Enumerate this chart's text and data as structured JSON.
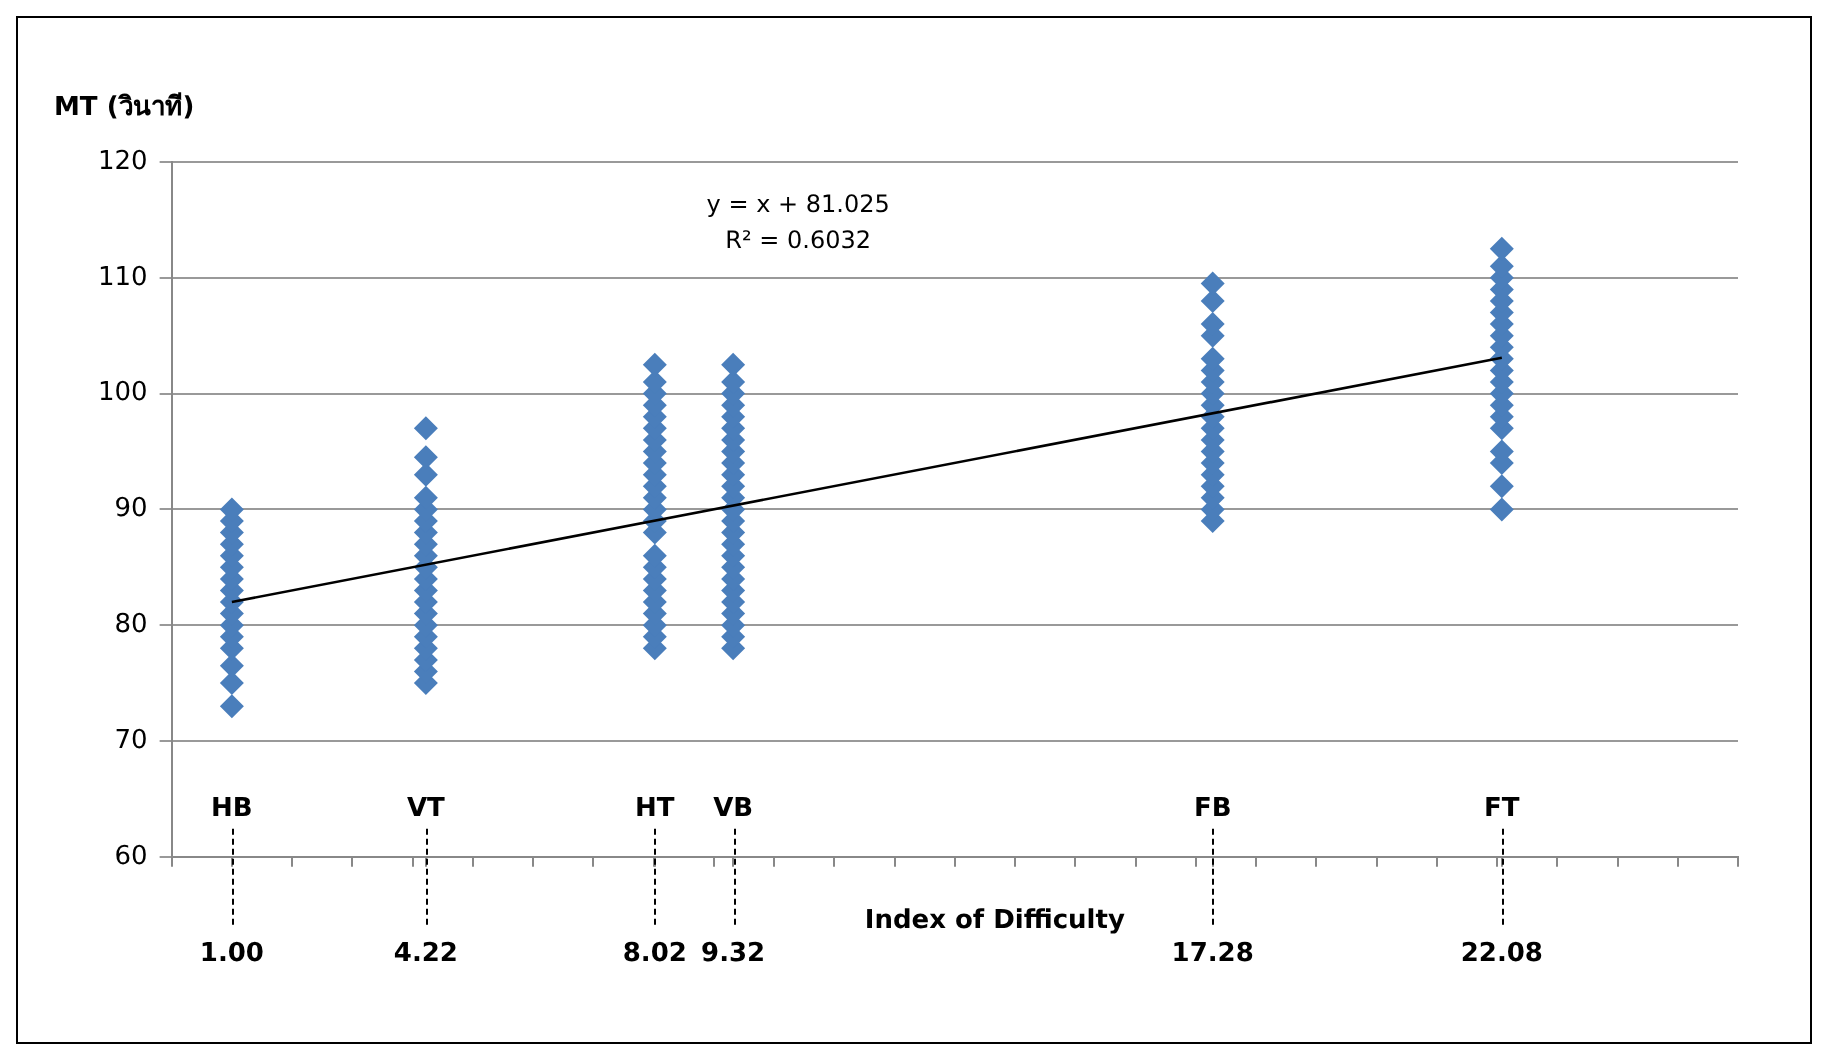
{
  "chart_data": {
    "type": "scatter",
    "ylabel": "MT (วินาที)",
    "xlabel": "Index of Difficulty",
    "xlim": [
      0,
      26
    ],
    "xticks": [
      {
        "value": 0,
        "label": null
      },
      {
        "value": 1,
        "label": "1.00"
      },
      {
        "value": 2,
        "label": null
      },
      {
        "value": 3,
        "label": null
      },
      {
        "value": 4,
        "label": null
      },
      {
        "value": 4.22,
        "label": "4.22"
      },
      {
        "value": 5,
        "label": null
      },
      {
        "value": 6,
        "label": null
      },
      {
        "value": 7,
        "label": null
      },
      {
        "value": 8,
        "label": null
      },
      {
        "value": 8.02,
        "label": "8.02"
      },
      {
        "value": 9,
        "label": null
      },
      {
        "value": 9.32,
        "label": "9.32"
      },
      {
        "value": 10,
        "label": null
      },
      {
        "value": 11,
        "label": null
      },
      {
        "value": 12,
        "label": null
      },
      {
        "value": 13,
        "label": null
      },
      {
        "value": 14,
        "label": null
      },
      {
        "value": 15,
        "label": null
      },
      {
        "value": 16,
        "label": null
      },
      {
        "value": 17,
        "label": null
      },
      {
        "value": 17.28,
        "label": "17.28"
      },
      {
        "value": 18,
        "label": null
      },
      {
        "value": 19,
        "label": null
      },
      {
        "value": 20,
        "label": null
      },
      {
        "value": 21,
        "label": null
      },
      {
        "value": 22,
        "label": null
      },
      {
        "value": 22.08,
        "label": "22.08"
      },
      {
        "value": 23,
        "label": null
      },
      {
        "value": 24,
        "label": null
      },
      {
        "value": 25,
        "label": null
      },
      {
        "value": 26,
        "label": null
      }
    ],
    "ylim": [
      60,
      120
    ],
    "yticks": [
      60,
      70,
      80,
      90,
      100,
      110,
      120
    ],
    "grid": "y",
    "legend": false,
    "marker": "diamond",
    "series": [
      {
        "type": "scatter",
        "color": "#4a7ebb",
        "x": [
          1,
          1,
          1,
          1,
          1,
          1,
          1,
          1,
          1,
          1,
          1,
          1,
          1,
          1,
          1,
          1
        ],
        "values": [
          73,
          75,
          76.5,
          78,
          79,
          80,
          81,
          82,
          83,
          84,
          85,
          86,
          87,
          88,
          89,
          90
        ]
      },
      {
        "type": "scatter",
        "color": "#4a7ebb",
        "x": [
          4.22,
          4.22,
          4.22,
          4.22,
          4.22,
          4.22,
          4.22,
          4.22,
          4.22,
          4.22,
          4.22,
          4.22,
          4.22,
          4.22,
          4.22,
          4.22,
          4.22,
          4.22,
          4.22,
          4.22
        ],
        "values": [
          75,
          76,
          77,
          78,
          79,
          80,
          81,
          82,
          83,
          84,
          85,
          86,
          87,
          88,
          89,
          90,
          91,
          93,
          94.5,
          97
        ]
      },
      {
        "type": "scatter",
        "color": "#4a7ebb",
        "x": [
          8.02,
          8.02,
          8.02,
          8.02,
          8.02,
          8.02,
          8.02,
          8.02,
          8.02,
          8.02,
          8.02,
          8.02,
          8.02,
          8.02,
          8.02,
          8.02,
          8.02,
          8.02,
          8.02,
          8.02,
          8.02,
          8.02,
          8.02,
          8.02
        ],
        "values": [
          78,
          79,
          80,
          81,
          82,
          83,
          84,
          85,
          86,
          88,
          89,
          90,
          91,
          92,
          93,
          94,
          95,
          96,
          97,
          98,
          99,
          100,
          101,
          102.5
        ]
      },
      {
        "type": "scatter",
        "color": "#4a7ebb",
        "x": [
          9.32,
          9.32,
          9.32,
          9.32,
          9.32,
          9.32,
          9.32,
          9.32,
          9.32,
          9.32,
          9.32,
          9.32,
          9.32,
          9.32,
          9.32,
          9.32,
          9.32,
          9.32,
          9.32,
          9.32,
          9.32,
          9.32,
          9.32,
          9.32,
          9.32
        ],
        "values": [
          78,
          79,
          80,
          81,
          82,
          83,
          84,
          85,
          86,
          87,
          88,
          89,
          90,
          91,
          92,
          93,
          94,
          95,
          96,
          97,
          98,
          99,
          100,
          101,
          102.5
        ]
      },
      {
        "type": "scatter",
        "color": "#4a7ebb",
        "x": [
          17.28,
          17.28,
          17.28,
          17.28,
          17.28,
          17.28,
          17.28,
          17.28,
          17.28,
          17.28,
          17.28,
          17.28,
          17.28,
          17.28,
          17.28,
          17.28,
          17.28,
          17.28,
          17.28
        ],
        "values": [
          89,
          90,
          91,
          92,
          93,
          94,
          95,
          96,
          97,
          98,
          99,
          100,
          101,
          102,
          103,
          105,
          106,
          108,
          109.5
        ]
      },
      {
        "type": "scatter",
        "color": "#4a7ebb",
        "x": [
          22.08,
          22.08,
          22.08,
          22.08,
          22.08,
          22.08,
          22.08,
          22.08,
          22.08,
          22.08,
          22.08,
          22.08,
          22.08,
          22.08,
          22.08,
          22.08,
          22.08,
          22.08,
          22.08,
          22.08
        ],
        "values": [
          90,
          92,
          94,
          95,
          97,
          98,
          99,
          100,
          101,
          102,
          103,
          104,
          105,
          106,
          107,
          108,
          109,
          110,
          111,
          112.5
        ]
      },
      {
        "type": "line",
        "color": "#000000",
        "marker": "none",
        "line_style": "solid",
        "x": [
          1,
          22.08
        ],
        "values": [
          82.0,
          103.1
        ]
      }
    ],
    "annotations": [
      "y = x + 81.025",
      "R² = 0.6032",
      "HB",
      "VT",
      "HT",
      "VB",
      "FB",
      "FT"
    ]
  }
}
